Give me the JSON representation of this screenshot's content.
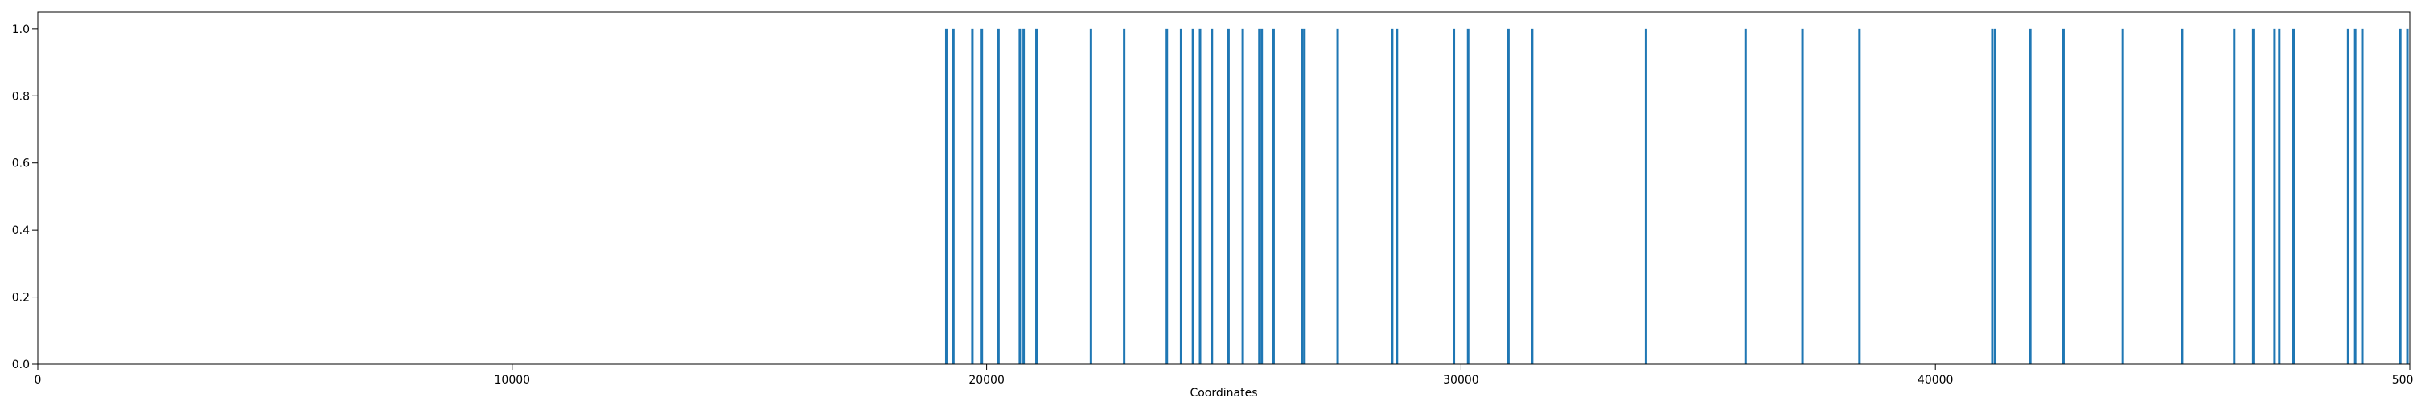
{
  "chart_data": {
    "type": "bar",
    "title": "",
    "xlabel": "Coordinates",
    "ylabel": "",
    "xlim": [
      0,
      50000
    ],
    "ylim": [
      0,
      1.05
    ],
    "grid": false,
    "bar_color": "#1f77b4",
    "x_ticks": [
      0,
      10000,
      20000,
      30000,
      40000,
      50000
    ],
    "x_tick_labels": [
      "0",
      "10000",
      "20000",
      "30000",
      "40000",
      "50000"
    ],
    "y_ticks": [
      0.0,
      0.2,
      0.4,
      0.6,
      0.8,
      1.0
    ],
    "y_tick_labels": [
      "0.0",
      "0.2",
      "0.4",
      "0.6",
      "0.8",
      "1.0"
    ],
    "x": [
      19150,
      19300,
      19700,
      19900,
      20250,
      20700,
      20780,
      21050,
      22200,
      22900,
      23800,
      24100,
      24350,
      24500,
      24750,
      25100,
      25400,
      25750,
      25800,
      26050,
      26650,
      26700,
      27400,
      28550,
      28650,
      29850,
      30150,
      31000,
      31500,
      33900,
      36000,
      37200,
      38400,
      41200,
      41260,
      42000,
      42700,
      43950,
      45200,
      46300,
      46700,
      47150,
      47250,
      47550,
      48700,
      48850,
      49000,
      49800,
      49950
    ],
    "values": [
      1,
      1,
      1,
      1,
      1,
      1,
      1,
      1,
      1,
      1,
      1,
      1,
      1,
      1,
      1,
      1,
      1,
      1,
      1,
      1,
      1,
      1,
      1,
      1,
      1,
      1,
      1,
      1,
      1,
      1,
      1,
      1,
      1,
      1,
      1,
      1,
      1,
      1,
      1,
      1,
      1,
      1,
      1,
      1,
      1,
      1,
      1,
      1,
      1
    ]
  }
}
